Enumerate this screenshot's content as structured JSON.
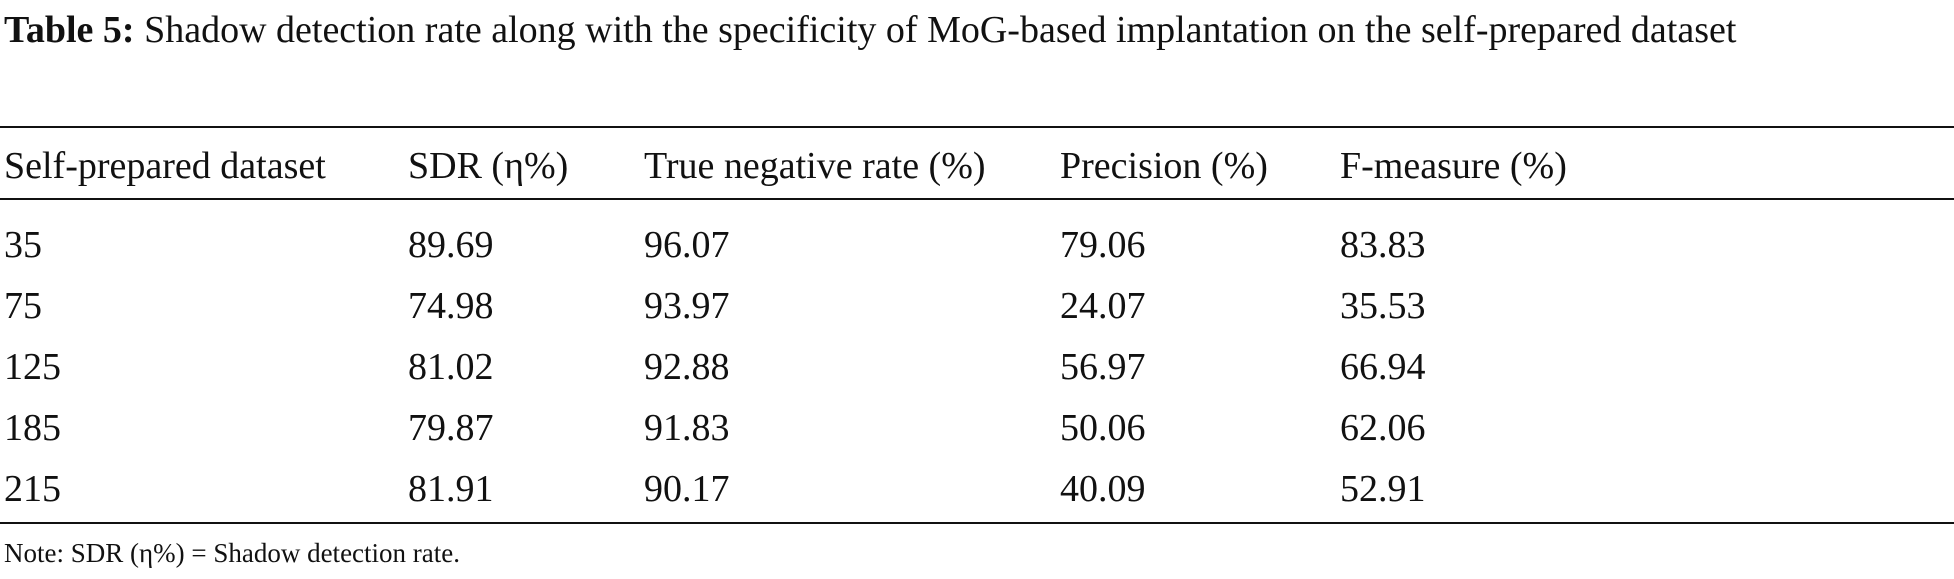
{
  "caption": {
    "label": "Table 5:",
    "text": " Shadow detection rate along with the specificity of MoG-based implantation on the self-prepared dataset"
  },
  "table": {
    "headers": [
      "Self-prepared dataset",
      "SDR (η%)",
      "True negative rate (%)",
      "Precision (%)",
      "F-measure (%)"
    ],
    "rows": [
      [
        "35",
        "89.69",
        "96.07",
        "79.06",
        "83.83"
      ],
      [
        "75",
        "74.98",
        "93.97",
        "24.07",
        "35.53"
      ],
      [
        "125",
        "81.02",
        "92.88",
        "56.97",
        "66.94"
      ],
      [
        "185",
        "79.87",
        "91.83",
        "50.06",
        "62.06"
      ],
      [
        "215",
        "81.91",
        "90.17",
        "40.09",
        "52.91"
      ]
    ]
  },
  "note": "Note: SDR (η%) = Shadow detection rate."
}
